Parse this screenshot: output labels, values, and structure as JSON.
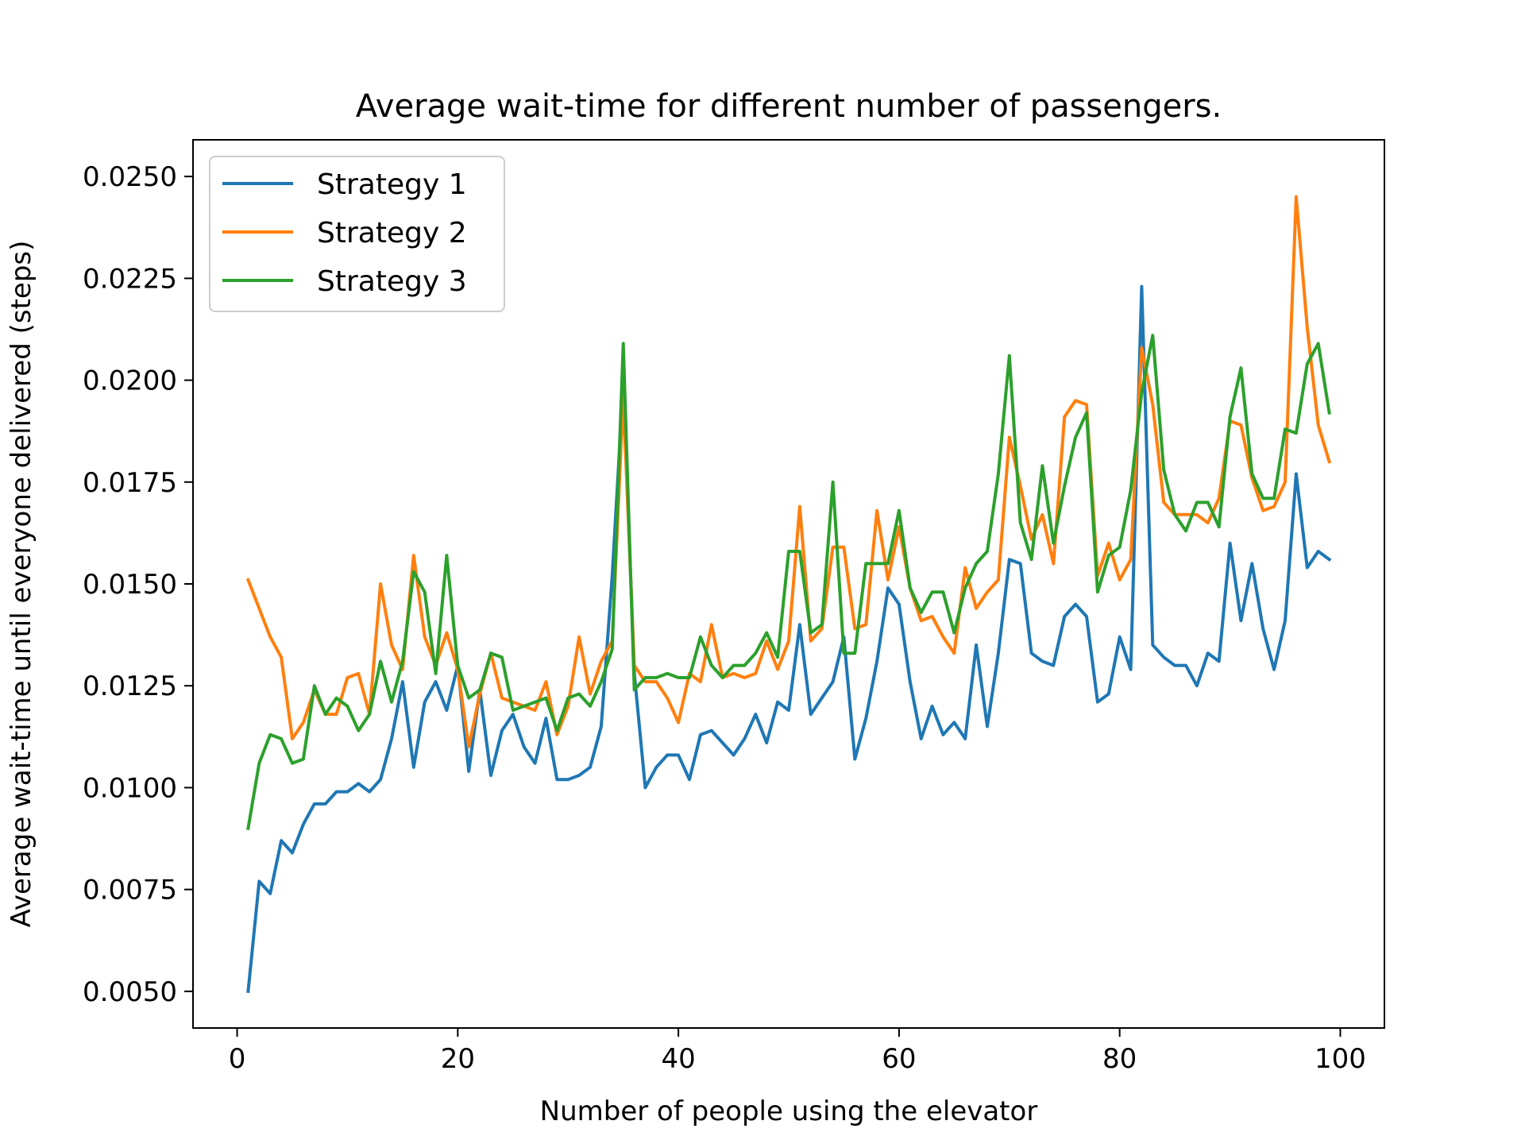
{
  "chart_data": {
    "type": "line",
    "title": "Average wait-time for different number of passengers.",
    "xlabel": "Number of people using the elevator",
    "ylabel": "Average wait-time until everyone delivered (steps)",
    "xlim": [
      -4,
      104
    ],
    "ylim": [
      0.0041,
      0.0259
    ],
    "xticks": [
      0,
      20,
      40,
      60,
      80,
      100
    ],
    "yticks": [
      0.005,
      0.0075,
      0.01,
      0.0125,
      0.015,
      0.0175,
      0.02,
      0.0225,
      0.025
    ],
    "xtick_labels": [
      "0",
      "20",
      "40",
      "60",
      "80",
      "100"
    ],
    "ytick_labels": [
      "0.0050",
      "0.0075",
      "0.0100",
      "0.0125",
      "0.0150",
      "0.0175",
      "0.0200",
      "0.0225",
      "0.0250"
    ],
    "grid": false,
    "legend_position": "top-left",
    "x": [
      1,
      2,
      3,
      4,
      5,
      6,
      7,
      8,
      9,
      10,
      11,
      12,
      13,
      14,
      15,
      16,
      17,
      18,
      19,
      20,
      21,
      22,
      23,
      24,
      25,
      26,
      27,
      28,
      29,
      30,
      31,
      32,
      33,
      34,
      35,
      36,
      37,
      38,
      39,
      40,
      41,
      42,
      43,
      44,
      45,
      46,
      47,
      48,
      49,
      50,
      51,
      52,
      53,
      54,
      55,
      56,
      57,
      58,
      59,
      60,
      61,
      62,
      63,
      64,
      65,
      66,
      67,
      68,
      69,
      70,
      71,
      72,
      73,
      74,
      75,
      76,
      77,
      78,
      79,
      80,
      81,
      82,
      83,
      84,
      85,
      86,
      87,
      88,
      89,
      90,
      91,
      92,
      93,
      94,
      95,
      96,
      97,
      98,
      99
    ],
    "series": [
      {
        "name": "Strategy 1",
        "color": "#1f77b4",
        "values": [
          0.005,
          0.0077,
          0.0074,
          0.0087,
          0.0084,
          0.0091,
          0.0096,
          0.0096,
          0.0099,
          0.0099,
          0.0101,
          0.0099,
          0.0102,
          0.0112,
          0.0126,
          0.0105,
          0.0121,
          0.0126,
          0.0119,
          0.013,
          0.0104,
          0.0124,
          0.0103,
          0.0114,
          0.0118,
          0.011,
          0.0106,
          0.0117,
          0.0102,
          0.0102,
          0.0103,
          0.0105,
          0.0115,
          0.0152,
          0.0199,
          0.0128,
          0.01,
          0.0105,
          0.0108,
          0.0108,
          0.0102,
          0.0113,
          0.0114,
          0.0111,
          0.0108,
          0.0112,
          0.0118,
          0.0111,
          0.0121,
          0.0119,
          0.014,
          0.0118,
          0.0122,
          0.0126,
          0.0137,
          0.0107,
          0.0117,
          0.0131,
          0.0149,
          0.0145,
          0.0126,
          0.0112,
          0.012,
          0.0113,
          0.0116,
          0.0112,
          0.0135,
          0.0115,
          0.0133,
          0.0156,
          0.0155,
          0.0133,
          0.0131,
          0.013,
          0.0142,
          0.0145,
          0.0142,
          0.0121,
          0.0123,
          0.0137,
          0.0129,
          0.0223,
          0.0135,
          0.0132,
          0.013,
          0.013,
          0.0125,
          0.0133,
          0.0131,
          0.016,
          0.0141,
          0.0155,
          0.0139,
          0.0129,
          0.0141,
          0.0177,
          0.0154,
          0.0158,
          0.0156
        ]
      },
      {
        "name": "Strategy 2",
        "color": "#ff7f0e",
        "values": [
          0.0151,
          0.0144,
          0.0137,
          0.0132,
          0.0112,
          0.0116,
          0.0124,
          0.0118,
          0.0118,
          0.0127,
          0.0128,
          0.0118,
          0.015,
          0.0135,
          0.0129,
          0.0157,
          0.0137,
          0.013,
          0.0138,
          0.0129,
          0.011,
          0.0123,
          0.0133,
          0.0122,
          0.0121,
          0.012,
          0.0119,
          0.0126,
          0.0113,
          0.012,
          0.0137,
          0.0123,
          0.0131,
          0.0136,
          0.0196,
          0.013,
          0.0126,
          0.0126,
          0.0122,
          0.0116,
          0.0128,
          0.0126,
          0.014,
          0.0127,
          0.0128,
          0.0127,
          0.0128,
          0.0136,
          0.0129,
          0.0136,
          0.0169,
          0.0136,
          0.0139,
          0.0159,
          0.0159,
          0.0139,
          0.014,
          0.0168,
          0.0151,
          0.0164,
          0.0149,
          0.0141,
          0.0142,
          0.0137,
          0.0133,
          0.0154,
          0.0144,
          0.0148,
          0.0151,
          0.0186,
          0.0174,
          0.0161,
          0.0167,
          0.0155,
          0.0191,
          0.0195,
          0.0194,
          0.0152,
          0.016,
          0.0151,
          0.0156,
          0.0208,
          0.0194,
          0.017,
          0.0167,
          0.0167,
          0.0167,
          0.0165,
          0.0171,
          0.019,
          0.0189,
          0.0176,
          0.0168,
          0.0169,
          0.0175,
          0.0245,
          0.0213,
          0.0189,
          0.018
        ]
      },
      {
        "name": "Strategy 3",
        "color": "#2ca02c",
        "values": [
          0.009,
          0.0106,
          0.0113,
          0.0112,
          0.0106,
          0.0107,
          0.0125,
          0.0118,
          0.0122,
          0.012,
          0.0114,
          0.0118,
          0.0131,
          0.0121,
          0.0131,
          0.0153,
          0.0148,
          0.0128,
          0.0157,
          0.013,
          0.0122,
          0.0124,
          0.0133,
          0.0132,
          0.0119,
          0.012,
          0.0121,
          0.0122,
          0.0114,
          0.0122,
          0.0123,
          0.012,
          0.0126,
          0.0134,
          0.0209,
          0.0124,
          0.0127,
          0.0127,
          0.0128,
          0.0127,
          0.0127,
          0.0137,
          0.013,
          0.0127,
          0.013,
          0.013,
          0.0133,
          0.0138,
          0.0132,
          0.0158,
          0.0158,
          0.0138,
          0.014,
          0.0175,
          0.0133,
          0.0133,
          0.0155,
          0.0155,
          0.0155,
          0.0168,
          0.0149,
          0.0143,
          0.0148,
          0.0148,
          0.0138,
          0.0149,
          0.0155,
          0.0158,
          0.0177,
          0.0206,
          0.0165,
          0.0156,
          0.0179,
          0.016,
          0.0174,
          0.0186,
          0.0192,
          0.0148,
          0.0157,
          0.0159,
          0.0173,
          0.0197,
          0.0211,
          0.0178,
          0.0167,
          0.0163,
          0.017,
          0.017,
          0.0164,
          0.0191,
          0.0203,
          0.0177,
          0.0171,
          0.0171,
          0.0188,
          0.0187,
          0.0204,
          0.0209,
          0.0192
        ]
      }
    ]
  }
}
